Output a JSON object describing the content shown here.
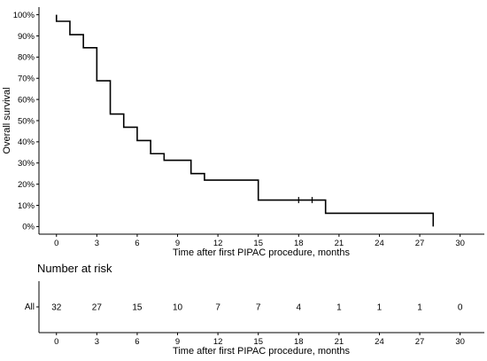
{
  "chart_data": [
    {
      "type": "line",
      "subtype": "kaplan-meier-step",
      "title": "",
      "xlabel": "Time after first PIPAC procedure, months",
      "ylabel": "Overall survival",
      "xlim": [
        -1.3,
        31.8
      ],
      "ylim": [
        -3.6,
        103.6
      ],
      "x_ticks": [
        0,
        3,
        6,
        9,
        12,
        15,
        18,
        21,
        24,
        27,
        30
      ],
      "y_ticks": [
        0,
        10,
        20,
        30,
        40,
        50,
        60,
        70,
        80,
        90,
        100
      ],
      "y_tick_labels": [
        "0%",
        "10%",
        "20%",
        "30%",
        "40%",
        "50%",
        "60%",
        "70%",
        "80%",
        "90%",
        "100%"
      ],
      "grid": false,
      "legend": "none",
      "series": [
        {
          "color": "#000000",
          "x": [
            0,
            0,
            1,
            2,
            3,
            4,
            5,
            6,
            7,
            8,
            10,
            11,
            15,
            20,
            28,
            28
          ],
          "y": [
            100,
            96.9,
            90.6,
            84.4,
            68.8,
            53.1,
            46.9,
            40.6,
            34.4,
            31.3,
            25.0,
            21.9,
            12.5,
            6.25,
            6.25,
            0
          ],
          "censored": [
            {
              "x": 18,
              "y": 12.5
            },
            {
              "x": 19,
              "y": 12.5
            }
          ]
        }
      ]
    },
    {
      "type": "table",
      "title": "Number at risk",
      "xlabel": "Time after first PIPAC procedure, months",
      "row_label": "All",
      "x_ticks": [
        0,
        3,
        6,
        9,
        12,
        15,
        18,
        21,
        24,
        27,
        30
      ],
      "values": [
        32,
        27,
        15,
        10,
        7,
        7,
        4,
        1,
        1,
        1,
        0
      ]
    }
  ]
}
